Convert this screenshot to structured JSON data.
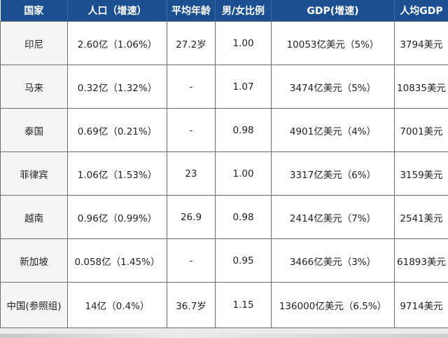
{
  "table": {
    "headers": [
      "国家",
      "人口（增速）",
      "平均年龄",
      "男/女比例",
      "GDP(增速)",
      "人均GDP"
    ],
    "rows": [
      [
        "印尼",
        "2.60亿（1.06%）",
        "27.2岁",
        "1.00",
        "10053亿美元（5%）",
        "3794美元"
      ],
      [
        "马来",
        "0.32亿（1.32%）",
        "-",
        "1.07",
        "3474亿美元（5%）",
        "10835美元"
      ],
      [
        "泰国",
        "0.69亿（0.21%）",
        "-",
        "0.98",
        "4901亿美元（4%）",
        "7001美元"
      ],
      [
        "菲律宾",
        "1.06亿（1.53%）",
        "23",
        "1.00",
        "3317亿美元（6%）",
        "3159美元"
      ],
      [
        "越南",
        "0.96亿（0.99%）",
        "26.9",
        "0.98",
        "2414亿美元（7%）",
        "2541美元"
      ],
      [
        "新加坡",
        "0.058亿（1.45%）",
        "-",
        "0.95",
        "3466亿美元（3%）",
        "61893美元"
      ],
      [
        "中国(参照组)",
        "14亿（0.4%）",
        "36.7岁",
        "1.15",
        "136000亿美元（6.5%）",
        "9714美元"
      ]
    ]
  },
  "colors": {
    "header_bg": "#1c4f8f",
    "header_text": "#ffffff",
    "cell_border": "#6c6c6c"
  }
}
